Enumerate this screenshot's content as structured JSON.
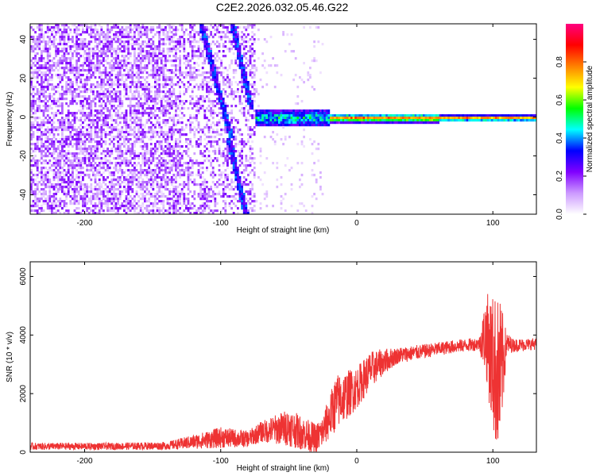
{
  "figure": {
    "title": "C2E2.2026.032.05.46.G22"
  },
  "chart_data": [
    {
      "type": "heatmap",
      "xlabel": "Height of straight line (km)",
      "ylabel": "Frequency (Hz)",
      "xlim": [
        -240,
        132
      ],
      "ylim": [
        -50,
        48
      ],
      "xticks": [
        -200,
        -100,
        0,
        100
      ],
      "yticks": [
        -40,
        -20,
        0,
        20,
        40
      ],
      "colorbar": {
        "label": "Normalized spectral amplitude",
        "range": [
          0,
          1
        ],
        "ticks": [
          0.0,
          0.2,
          0.4,
          0.6,
          0.8
        ],
        "colormap": [
          "#ffffff",
          "#cc99ff",
          "#8000ff",
          "#0000ff",
          "#00ffff",
          "#00ff00",
          "#ffff00",
          "#ff8000",
          "#ff0000",
          "#ff0080"
        ]
      },
      "regions": {
        "noise_x_range": [
          -240,
          -75
        ],
        "sparse_noise_x_range": [
          -75,
          -25
        ],
        "carrier_start_x": -75,
        "carrier_frequency_hz": 0,
        "diagonal_artifact_1": {
          "x": [
            -115,
            -93
          ],
          "y": [
            48,
            -10
          ]
        },
        "diagonal_artifact_2": {
          "x": [
            -95,
            -82
          ],
          "y": [
            -10,
            -50
          ]
        },
        "diagonal_artifact_3": {
          "x": [
            -92,
            -78
          ],
          "y": [
            48,
            5
          ]
        }
      }
    },
    {
      "type": "line",
      "xlabel": "Height of straight line (km)",
      "ylabel": "SNR (10 * v/v)",
      "xlim": [
        -240,
        132
      ],
      "ylim": [
        0,
        6500
      ],
      "xticks": [
        -200,
        -100,
        0,
        100
      ],
      "yticks": [
        0,
        2000,
        4000,
        6000
      ],
      "color": "#ee3333",
      "envelope": {
        "x": [
          -240,
          -180,
          -140,
          -120,
          -100,
          -80,
          -70,
          -50,
          -30,
          -25,
          -15,
          0,
          10,
          20,
          30,
          50,
          70,
          90,
          95,
          100,
          105,
          110,
          115,
          132
        ],
        "y": [
          200,
          200,
          220,
          350,
          500,
          450,
          700,
          850,
          450,
          700,
          1700,
          2200,
          2800,
          3100,
          3300,
          3450,
          3600,
          3700,
          4000,
          3000,
          2500,
          3700,
          3650,
          3700
        ],
        "amp": [
          150,
          150,
          170,
          300,
          450,
          350,
          450,
          800,
          650,
          700,
          1200,
          900,
          800,
          550,
          350,
          300,
          280,
          280,
          1800,
          3000,
          3500,
          500,
          280,
          250
        ]
      }
    }
  ]
}
